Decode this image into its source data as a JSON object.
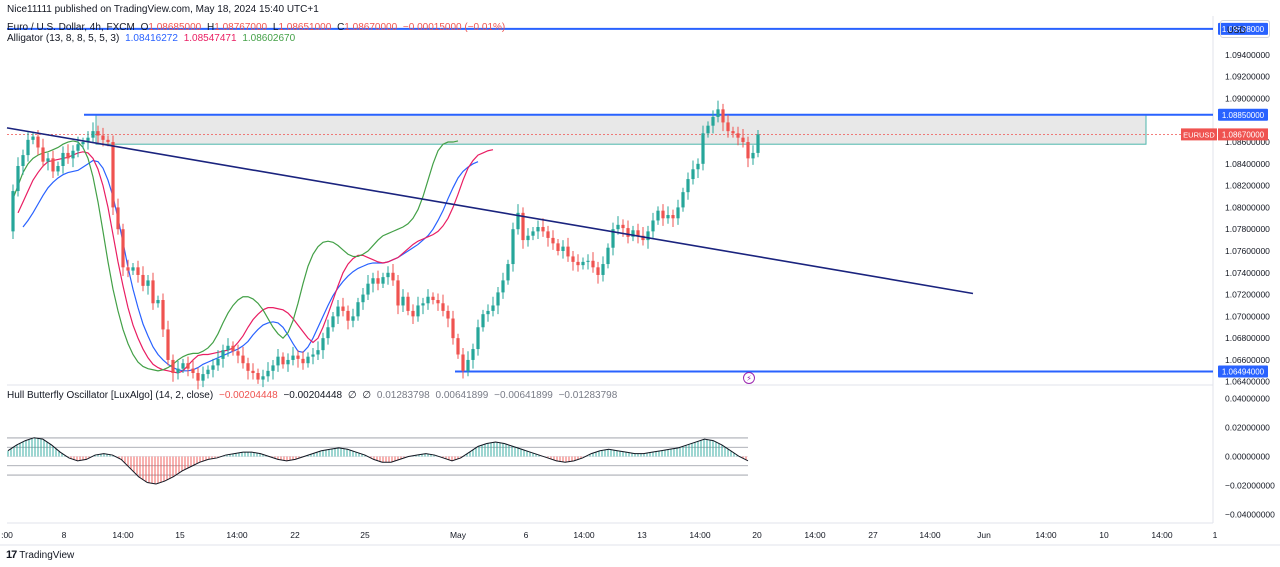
{
  "header": {
    "published": "Nice11111 published on TradingView.com, May 18, 2024 15:40 UTC+1",
    "symbol": "Euro / U.S. Dollar, 4h, FXCM",
    "ohlc": {
      "o_label": "O",
      "o": "1.08685000",
      "h_label": "H",
      "h": "1.08767000",
      "l_label": "L",
      "l": "1.08651000",
      "c_label": "C",
      "c": "1.08670000",
      "change": "−0.00015000 (−0.01%)"
    },
    "alligator": {
      "label": "Alligator (13, 8, 8, 5, 5, 3)",
      "jaw": "1.08416272",
      "teeth": "1.08547471",
      "lips": "1.08602670"
    },
    "oscillator": {
      "label": "Hull Butterfly Oscillator [LuxAlgo] (14, 2, close)",
      "v1": "−0.00204448",
      "v2": "−0.00204448",
      "v3": "0.01283798",
      "v4": "0.00641899",
      "v5": "−0.00641899",
      "v6": "−0.01283798"
    }
  },
  "currency_button": "USD",
  "branding": "TradingView",
  "colors": {
    "up": "#26a69a",
    "down": "#ef5350",
    "jaw": "#2962ff",
    "teeth": "#e91e63",
    "lips": "#43a047",
    "trendline": "#1a237e",
    "level": "#2962ff",
    "zone_fill": "#d9d9d9"
  },
  "chart_data": [
    {
      "type": "candlestick",
      "symbol_badge": "EURUSD",
      "last_price": "1.08670000",
      "y_axis": {
        "range": [
          1.0637,
          1.0972
        ],
        "ticks": [
          "1.09400000",
          "1.09200000",
          "1.09000000",
          "1.08600000",
          "1.08400000",
          "1.08200000",
          "1.08000000",
          "1.07800000",
          "1.07600000",
          "1.07400000",
          "1.07200000",
          "1.07000000",
          "1.06800000",
          "1.06600000",
          "1.06400000"
        ]
      },
      "x_axis": {
        "ticks": [
          ":00",
          "8",
          "14:00",
          "15",
          "14:00",
          "22",
          "25",
          "May",
          "6",
          "14:00",
          "13",
          "14:00",
          "20",
          "14:00",
          "27",
          "14:00",
          "Jun",
          "14:00",
          "10",
          "14:00",
          "1"
        ]
      },
      "levels": [
        {
          "value": 1.09638,
          "label": "1.09638000"
        },
        {
          "value": 1.0885,
          "label": "1.08850000"
        },
        {
          "value": 1.06494,
          "label": "1.06494000"
        }
      ],
      "zone": {
        "top": 1.0885,
        "bottom": 1.0858
      },
      "trendline": {
        "from": [
          0,
          1.0873
        ],
        "to": [
          193,
          1.0721
        ]
      },
      "candle_path": [
        1.0778,
        1.0815,
        1.0838,
        1.0848,
        1.0862,
        1.0865,
        1.0855,
        1.0842,
        1.0845,
        1.0833,
        1.0838,
        1.085,
        1.0845,
        1.0852,
        1.0858,
        1.086,
        1.0864,
        1.087,
        1.0866,
        1.0862,
        1.086,
        1.08,
        1.078,
        1.0745,
        1.0742,
        1.0745,
        1.0738,
        1.0728,
        1.0733,
        1.0712,
        1.0715,
        1.0688,
        1.066,
        1.0648,
        1.0652,
        1.0657,
        1.0652,
        1.0648,
        1.0641,
        1.0647,
        1.0651,
        1.0655,
        1.0661,
        1.0669,
        1.0673,
        1.0668,
        1.0664,
        1.0657,
        1.065,
        1.0648,
        1.0642,
        1.0645,
        1.065,
        1.0655,
        1.0663,
        1.0656,
        1.066,
        1.0664,
        1.0661,
        1.0657,
        1.0663,
        1.0665,
        1.0669,
        1.068,
        1.069,
        1.07,
        1.0709,
        1.0705,
        1.0696,
        1.07,
        1.0713,
        1.072,
        1.073,
        1.0735,
        1.073,
        1.0736,
        1.074,
        1.0733,
        1.071,
        1.0718,
        1.0705,
        1.07,
        1.071,
        1.0712,
        1.0718,
        1.0715,
        1.0712,
        1.0705,
        1.0698,
        1.068,
        1.0665,
        1.065,
        1.066,
        1.067,
        1.069,
        1.0702,
        1.0705,
        1.071,
        1.0722,
        1.0733,
        1.0748,
        1.078,
        1.0795,
        1.077,
        1.0774,
        1.0778,
        1.0782,
        1.0778,
        1.0772,
        1.0767,
        1.076,
        1.0764,
        1.0755,
        1.075,
        1.0747,
        1.075,
        1.0751,
        1.0745,
        1.0738,
        1.0748,
        1.0763,
        1.078,
        1.0784,
        1.0781,
        1.0773,
        1.0779,
        1.0774,
        1.077,
        1.0778,
        1.0788,
        1.0797,
        1.079,
        1.0793,
        1.079,
        1.08,
        1.0814,
        1.0826,
        1.0835,
        1.084,
        1.0868,
        1.0875,
        1.0883,
        1.089,
        1.0878,
        1.087,
        1.0868,
        1.0864,
        1.086,
        1.0845,
        1.085,
        1.0867
      ],
      "bars": [
        {
          "x0": 7,
          "x1": 122,
          "value": 1.0864
        },
        {
          "x0": 108,
          "x1": 121,
          "value": 1.0872
        },
        {
          "x0": 123,
          "x1": 140,
          "value": 1.085
        },
        {
          "x0": 141,
          "x1": 147,
          "value": 1.0864
        }
      ],
      "teeth_path": [
        1.0795,
        1.0805,
        1.0815,
        1.0825,
        1.0832,
        1.0838,
        1.0842,
        1.0843,
        1.0844,
        1.0845,
        1.0846,
        1.0848,
        1.085,
        1.0851,
        1.085,
        1.0845,
        1.0835,
        1.082,
        1.08,
        1.0775,
        1.075,
        1.0728,
        1.0708,
        1.0692,
        1.068,
        1.067,
        1.0662,
        1.0656,
        1.0653,
        1.0651,
        1.065,
        1.0649,
        1.0648,
        1.065,
        1.0655,
        1.066,
        1.0664,
        1.0665,
        1.0665,
        1.0666,
        1.0667,
        1.0668,
        1.0669,
        1.0671,
        1.0676,
        1.0682,
        1.069,
        1.0697,
        1.0702,
        1.0706,
        1.0708,
        1.0708,
        1.0707,
        1.0706,
        1.0703,
        1.0698,
        1.0692,
        1.0686,
        1.068,
        1.0676,
        1.068,
        1.069,
        1.0702,
        1.0715,
        1.0728,
        1.074,
        1.0748,
        1.0753,
        1.0756,
        1.0756,
        1.0754,
        1.0752,
        1.075,
        1.0749,
        1.075,
        1.0752,
        1.0754,
        1.0758,
        1.0762,
        1.0766,
        1.0769,
        1.0771,
        1.0773,
        1.0775,
        1.0778,
        1.0783,
        1.079,
        1.08,
        1.0812,
        1.0825,
        1.0836,
        1.0843,
        1.0848,
        1.085,
        1.0852,
        1.0853
      ],
      "jaw_path": [
        1.0782,
        1.0788,
        1.0795,
        1.0803,
        1.0811,
        1.0818,
        1.0823,
        1.0827,
        1.083,
        1.0832,
        1.0833,
        1.0834,
        1.0837,
        1.084,
        1.0843,
        1.0842,
        1.0836,
        1.0825,
        1.081,
        1.079,
        1.0768,
        1.0745,
        1.0725,
        1.0708,
        1.0693,
        1.0682,
        1.0672,
        1.0665,
        1.066,
        1.0656,
        1.0653,
        1.0651,
        1.065,
        1.065,
        1.0651,
        1.0653,
        1.0656,
        1.0658,
        1.066,
        1.0662,
        1.0664,
        1.0666,
        1.0668,
        1.067,
        1.0673,
        1.0677,
        1.0683,
        1.0688,
        1.0692,
        1.0694,
        1.0695,
        1.0694,
        1.069,
        1.0683,
        1.0675,
        1.0668,
        1.0667,
        1.0672,
        1.068,
        1.069,
        1.07,
        1.071,
        1.0719,
        1.0726,
        1.0732,
        1.0737,
        1.0741,
        1.0744,
        1.0746,
        1.0748,
        1.0749,
        1.0749,
        1.0749,
        1.075,
        1.0752,
        1.0754,
        1.0757,
        1.076,
        1.0763,
        1.0766,
        1.077,
        1.0774,
        1.078,
        1.0788,
        1.0797,
        1.0808,
        1.0818,
        1.0827,
        1.0833,
        1.0837,
        1.084,
        1.0842
      ],
      "lips_path": [
        1.0808,
        1.082,
        1.0832,
        1.084,
        1.0845,
        1.0848,
        1.085,
        1.0851,
        1.0853,
        1.0855,
        1.0858,
        1.086,
        1.0861,
        1.086,
        1.0855,
        1.0845,
        1.0828,
        1.0805,
        1.0778,
        1.075,
        1.0725,
        1.0705,
        1.0688,
        1.0675,
        1.0665,
        1.0658,
        1.0654,
        1.0652,
        1.0651,
        1.065,
        1.0651,
        1.0653,
        1.0656,
        1.066,
        1.0663,
        1.0665,
        1.0666,
        1.0666,
        1.0668,
        1.0671,
        1.0676,
        1.0684,
        1.0694,
        1.0703,
        1.071,
        1.0715,
        1.0718,
        1.0718,
        1.0716,
        1.0712,
        1.0706,
        1.0698,
        1.069,
        1.0684,
        1.068,
        1.0685,
        1.0696,
        1.0712,
        1.073,
        1.0746,
        1.0757,
        1.0764,
        1.0768,
        1.0769,
        1.0768,
        1.0765,
        1.0761,
        1.0757,
        1.0755,
        1.0755,
        1.0757,
        1.076,
        1.0765,
        1.077,
        1.0774,
        1.0776,
        1.0778,
        1.078,
        1.0782,
        1.0785,
        1.079,
        1.0798,
        1.081,
        1.0825,
        1.084,
        1.0852,
        1.0858,
        1.086,
        1.086,
        1.0861
      ]
    },
    {
      "type": "oscillator",
      "y_axis": {
        "range": [
          -0.046,
          0.046
        ],
        "ticks": [
          "0.04000000",
          "0.02000000",
          "0.00000000",
          "−0.02000000",
          "−0.04000000"
        ]
      },
      "bands": [
        0.01283798,
        0.00641899,
        -0.00641899,
        -0.01283798
      ],
      "values": [
        0.004,
        0.008,
        0.011,
        0.013,
        0.012,
        0.008,
        0.003,
        -0.001,
        -0.003,
        -0.002,
        0.001,
        0.002,
        0.001,
        -0.002,
        -0.008,
        -0.014,
        -0.018,
        -0.019,
        -0.017,
        -0.014,
        -0.01,
        -0.007,
        -0.004,
        -0.002,
        -0.001,
        0.001,
        0.002,
        0.003,
        0.003,
        0.002,
        0.0,
        -0.002,
        -0.003,
        -0.002,
        0.0,
        0.002,
        0.004,
        0.005,
        0.006,
        0.005,
        0.003,
        0.001,
        -0.002,
        -0.004,
        -0.004,
        -0.002,
        0.0,
        0.001,
        0.002,
        0.001,
        -0.001,
        -0.003,
        -0.001,
        0.003,
        0.007,
        0.009,
        0.01,
        0.009,
        0.007,
        0.005,
        0.003,
        0.001,
        -0.001,
        -0.003,
        -0.004,
        -0.003,
        -0.001,
        0.002,
        0.004,
        0.005,
        0.004,
        0.003,
        0.002,
        0.002,
        0.003,
        0.004,
        0.005,
        0.006,
        0.008,
        0.01,
        0.012,
        0.011,
        0.008,
        0.004,
        0.0,
        -0.003
      ]
    }
  ]
}
